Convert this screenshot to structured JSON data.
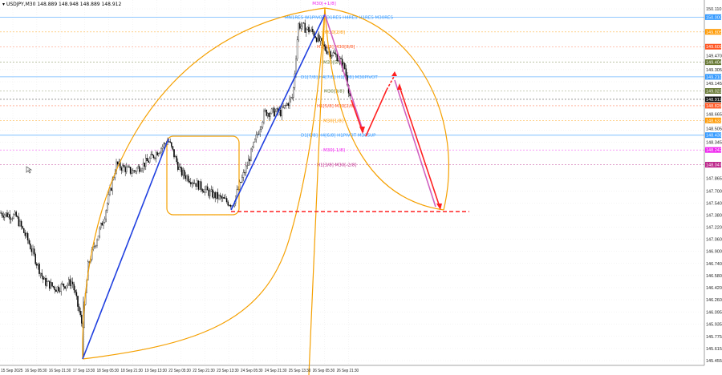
{
  "header": {
    "symbol": "USDJPY,M30",
    "ohlc": "148.889 148.948 148.889 148.912"
  },
  "colors": {
    "up": "#000000",
    "down": "#000000",
    "grid": "#e8e8e8",
    "trend": "#2040e0",
    "arc": "#f5a000",
    "arrow": "#ff2020",
    "pink": "#d060c0"
  },
  "price_axis": [
    "150.110",
    "149.470",
    "149.305",
    "149.145",
    "148.665",
    "148.505",
    "148.345",
    "147.865",
    "147.700",
    "147.540",
    "147.380",
    "147.220",
    "147.060",
    "146.900",
    "146.740",
    "146.580",
    "146.420",
    "146.260",
    "146.095",
    "145.935",
    "145.775",
    "145.615",
    "145.455"
  ],
  "time_axis": [
    "15 Sep 2025",
    "16 Sep 05:30",
    "16 Sep 21:30",
    "17 Sep 13:30",
    "18 Sep 05:30",
    "18 Sep 21:30",
    "19 Sep 13:30",
    "22 Sep 05:30",
    "22 Sep 21:30",
    "23 Sep 13:30",
    "24 Sep 05:30",
    "24 Sep 21:30",
    "25 Sep 13:30",
    "26 Sep 05:30",
    "26 Sep 21:30"
  ],
  "levels": [
    {
      "price": 150.0,
      "tag": "150.000",
      "label": "MN1RES W1PIVOT D1RES H4RES H1RES M30RES",
      "color": "#3399ff",
      "solid": true
    },
    {
      "price": 149.805,
      "tag": "149.805",
      "label": "M30[2/8]",
      "color": "#ff9900"
    },
    {
      "price": 149.609,
      "tag": "149.609",
      "label": "H1[2/8] M30[8/8]",
      "color": "#ff5522"
    },
    {
      "price": 149.404,
      "tag": "149.404",
      "label": "M30[5/8]",
      "color": "#667733"
    },
    {
      "price": 149.21,
      "tag": "149.210",
      "label": "D1[7/8] H4[7/8] H1[6/8] M30PIVOT",
      "color": "#3399ff",
      "solid": true
    },
    {
      "price": 149.023,
      "tag": "149.023",
      "label": "M30[3/8]",
      "color": "#667733"
    },
    {
      "price": 148.912,
      "tag": "148.912",
      "label": "",
      "color": "#111111"
    },
    {
      "price": 148.828,
      "tag": "148.828",
      "label": "H1[5/8] M30[2/8]",
      "color": "#ff5522"
    },
    {
      "price": 148.633,
      "tag": "148.633",
      "label": "M30[1/8]",
      "color": "#ff9900"
    },
    {
      "price": 148.438,
      "tag": "148.438",
      "label": "D1[6/8] H4[6/8] H1PIVOT M30SUP",
      "color": "#3399ff",
      "solid": true
    },
    {
      "price": 148.242,
      "tag": "148.242",
      "label": "M30[-1/8]",
      "color": "#ee22ee"
    },
    {
      "price": 148.047,
      "tag": "148.047",
      "label": "H1[3/8] M30[-2/8]",
      "color": "#bb2288"
    }
  ],
  "top_label": {
    "text": "M30[+1/8]",
    "color": "#ee22ee"
  },
  "chart_data": {
    "type": "candlestick",
    "symbol": "USDJPY",
    "timeframe": "M30",
    "ylim": [
      145.455,
      150.11
    ],
    "approx_path": [
      [
        0,
        147.41
      ],
      [
        20,
        147.36
      ],
      [
        35,
        147.04
      ],
      [
        55,
        146.5
      ],
      [
        70,
        146.41
      ],
      [
        90,
        146.5
      ],
      [
        103,
        145.9
      ],
      [
        110,
        146.73
      ],
      [
        130,
        147.36
      ],
      [
        145,
        148.05
      ],
      [
        165,
        147.95
      ],
      [
        185,
        148.1
      ],
      [
        210,
        148.37
      ],
      [
        225,
        147.95
      ],
      [
        260,
        147.68
      ],
      [
        290,
        147.52
      ],
      [
        310,
        148.1
      ],
      [
        330,
        148.74
      ],
      [
        350,
        148.74
      ],
      [
        365,
        148.95
      ],
      [
        372,
        149.9
      ],
      [
        390,
        149.8
      ],
      [
        405,
        149.58
      ],
      [
        420,
        149.48
      ],
      [
        430,
        149.32
      ],
      [
        437,
        148.91
      ]
    ]
  }
}
